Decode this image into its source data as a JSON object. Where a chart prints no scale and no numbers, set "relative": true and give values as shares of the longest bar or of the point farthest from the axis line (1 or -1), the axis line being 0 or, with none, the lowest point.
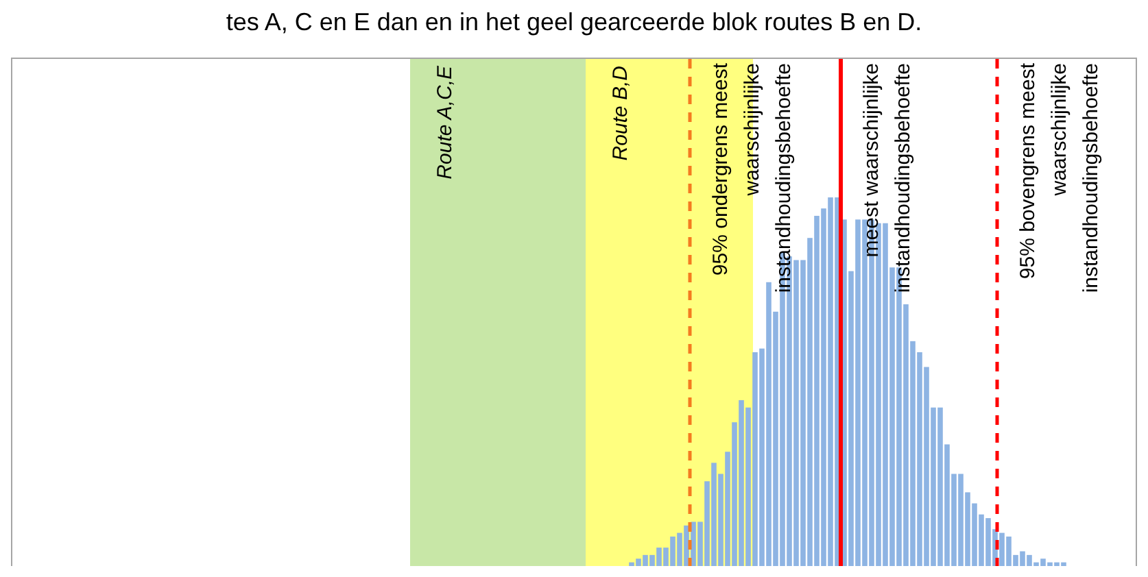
{
  "chart_data": {
    "type": "bar",
    "title": "tes A, C en E dan en in het geel gearceerde blok routes B en D.",
    "relative": true,
    "categories": [
      null,
      null,
      null,
      null,
      null,
      null,
      null,
      null,
      null,
      null,
      null,
      null,
      null,
      null,
      null,
      null,
      null,
      null,
      null,
      null,
      null,
      null,
      null,
      null,
      null,
      null,
      null,
      null,
      null,
      null,
      null,
      null,
      null,
      null,
      null,
      null,
      null,
      null,
      null,
      null,
      null,
      null,
      null,
      null,
      null,
      null,
      null,
      null,
      null,
      null,
      null,
      null,
      null,
      null,
      null,
      null,
      null,
      null,
      null,
      null,
      null,
      null,
      null,
      null
    ],
    "series": [
      {
        "color": "#8eb4e3",
        "values": [
          0.01,
          0.02,
          0.03,
          0.03,
          0.05,
          0.05,
          0.08,
          0.09,
          0.11,
          0.12,
          0.12,
          0.23,
          0.28,
          0.25,
          0.31,
          0.39,
          0.45,
          0.43,
          0.58,
          0.59,
          0.77,
          0.69,
          0.85,
          0.84,
          0.83,
          0.83,
          0.89,
          0.95,
          0.97,
          1,
          1,
          0.94,
          0.8,
          0.94,
          0.94,
          0.94,
          0.93,
          0.93,
          0.81,
          0.81,
          0.71,
          0.61,
          0.58,
          0.54,
          0.43,
          0.43,
          0.33,
          0.25,
          0.25,
          0.2,
          0.17,
          0.14,
          0.13,
          0.1,
          0.09,
          0.08,
          0.03,
          0.04,
          0.03,
          0.01,
          0.02,
          0.01,
          0.01,
          0.01
        ]
      }
    ],
    "annotations": [
      "Route A,C,E",
      "Route B,D",
      "95% ondergrens meest waarschijnlijke instandhoudingsbehoefte",
      "meest waarschijnlijke instandhoudingsbehoefte",
      "95% bovengrens meest waarschijnlijke instandhoudingsbehoefte"
    ]
  }
}
